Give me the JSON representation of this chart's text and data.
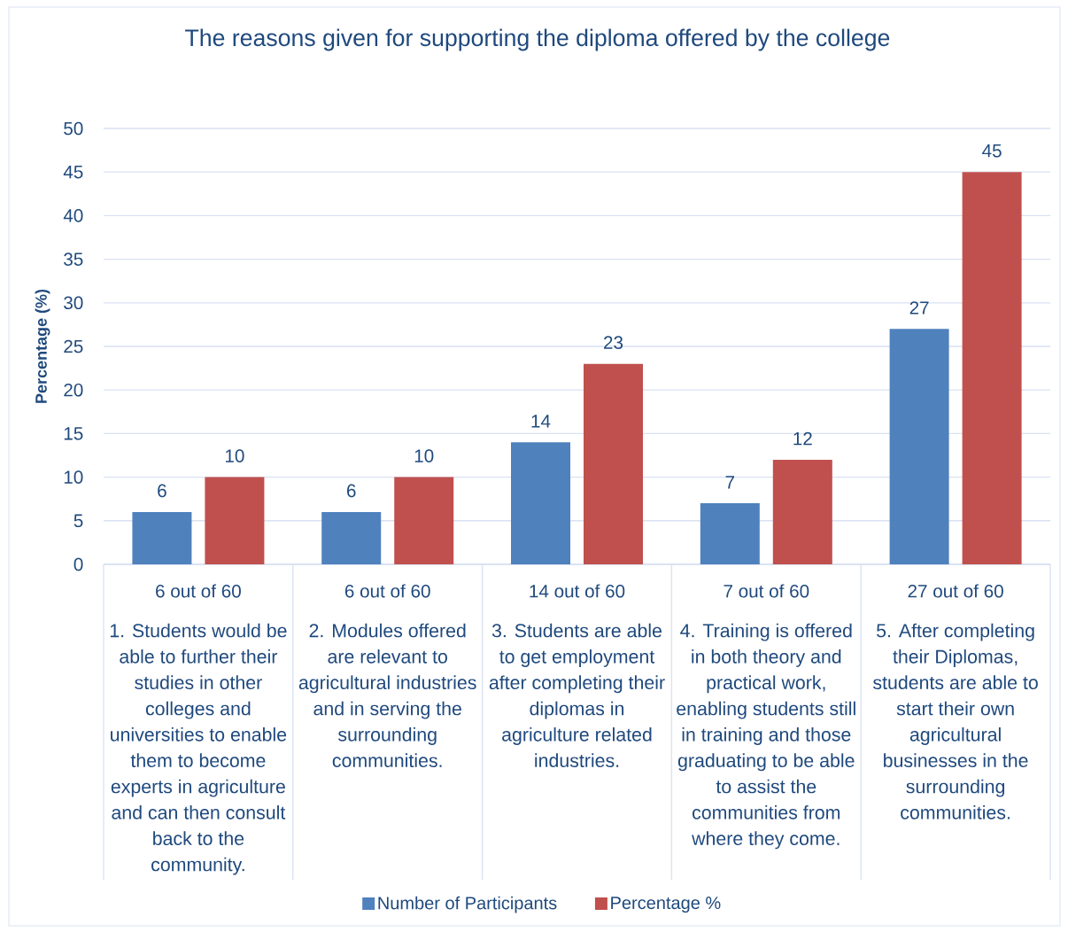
{
  "chart_data": {
    "type": "bar",
    "title": "The reasons given for supporting the diploma offered by the college",
    "ylabel": "Percentage (%)",
    "categories": [
      "1. Students would be able to further their studies in other colleges and universities to enable them to become experts in agriculture and can then consult back to the community.",
      "2. Modules offered are relevant to agricultural industries and in serving the surrounding communities.",
      "3. Students are able to get employment after completing their diplomas in agriculture related industries.",
      "4. Training is offered in both theory and practical work, enabling students still in training and those graduating to be able to assist the communities from where they come.",
      "5. After completing their Diplomas, students are able to start their own agricultural businesses in the surrounding communities."
    ],
    "series": [
      {
        "name": "Number of Participants",
        "color": "#4f81bd",
        "values": [
          6,
          6,
          14,
          7,
          27
        ]
      },
      {
        "name": "Percentage %",
        "color": "#c0504d",
        "values": [
          10,
          10,
          23,
          12,
          45
        ]
      }
    ],
    "ylim": [
      0,
      50
    ],
    "yticks": [
      0,
      5,
      10,
      15,
      20,
      25,
      30,
      35,
      40,
      45,
      50
    ],
    "grid": "y",
    "legend": "bottom",
    "data_labels": true,
    "annotations": [
      "6 out of 60",
      "6 out of 60",
      "14 out of 60",
      "7 out of 60",
      "27 out of 60"
    ]
  }
}
